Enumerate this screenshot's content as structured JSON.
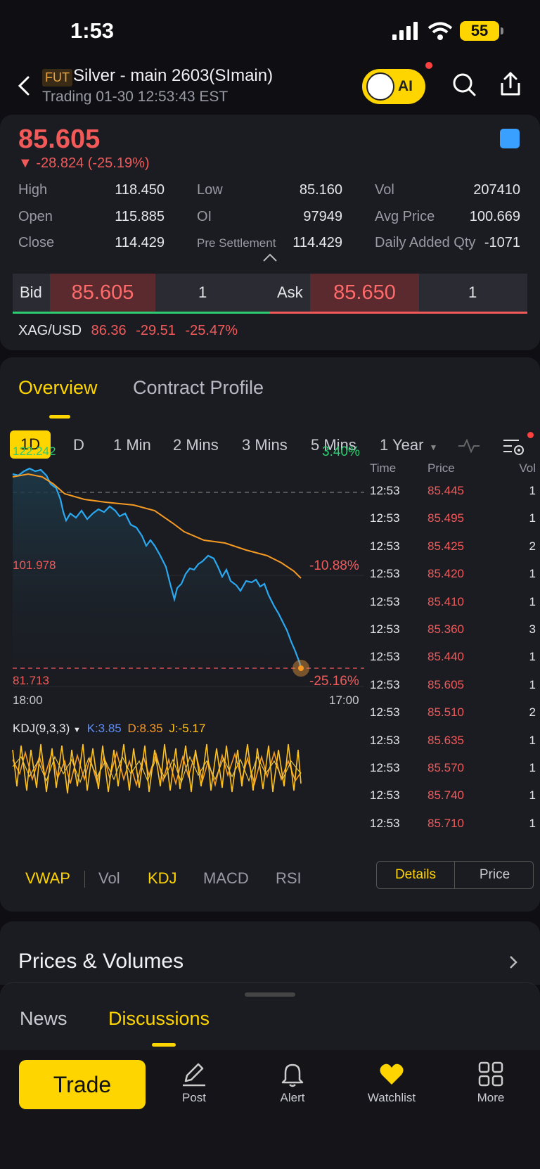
{
  "status": {
    "time": "1:53",
    "battery": "55"
  },
  "header": {
    "tag": "FUT",
    "title": "Silver - main 2603(SImain)",
    "subtitle": "Trading 01-30 12:53:43 EST",
    "ai_label": "AI"
  },
  "quote": {
    "price": "85.605",
    "change": "▼ -28.824 (-25.19%)",
    "stats": [
      {
        "label": "High",
        "value": "118.450"
      },
      {
        "label": "Low",
        "value": "85.160"
      },
      {
        "label": "Vol",
        "value": "207410"
      },
      {
        "label": "Open",
        "value": "115.885"
      },
      {
        "label": "OI",
        "value": "97949"
      },
      {
        "label": "Avg Price",
        "value": "100.669"
      },
      {
        "label": "Close",
        "value": "114.429"
      },
      {
        "label": "Pre Settlement",
        "value": "114.429"
      },
      {
        "label": "Daily Added Qty",
        "value": "-1071"
      }
    ],
    "bid_label": "Bid",
    "bid_price": "85.605",
    "bid_qty": "1",
    "ask_label": "Ask",
    "ask_price": "85.650",
    "ask_qty": "1",
    "xag_label": "XAG/USD",
    "xag_price": "86.36",
    "xag_change": "-29.51",
    "xag_pct": "-25.47%"
  },
  "tabs": {
    "overview": "Overview",
    "profile": "Contract Profile"
  },
  "periods": [
    "1D",
    "D",
    "1 Min",
    "2 Mins",
    "3 Mins",
    "5 Mins",
    "1 Year"
  ],
  "chart": {
    "y_top": "122.242",
    "y_mid": "101.978",
    "y_bot": "81.713",
    "pct_top": "3.40%",
    "pct_mid": "-10.88%",
    "pct_bot": "-25.16%",
    "x_start": "18:00",
    "x_end": "17:00",
    "kdj_label": "KDJ(9,3,3)",
    "k": "K:3.85",
    "d": "D:8.35",
    "j": "J:-5.17",
    "colors": {
      "price": "#2aa8f0",
      "vwap": "#f59a23",
      "kdj": "#ffc21a"
    }
  },
  "chart_data": {
    "type": "line",
    "ylim": [
      81.713,
      122.242
    ],
    "x": [
      "18:00",
      "17:00"
    ],
    "series": []
  },
  "ticker": {
    "headers": [
      "Time",
      "Price",
      "Vol"
    ],
    "rows": [
      {
        "time": "12:53",
        "price": "85.445",
        "vol": "1"
      },
      {
        "time": "12:53",
        "price": "85.495",
        "vol": "1"
      },
      {
        "time": "12:53",
        "price": "85.425",
        "vol": "2"
      },
      {
        "time": "12:53",
        "price": "85.420",
        "vol": "1"
      },
      {
        "time": "12:53",
        "price": "85.410",
        "vol": "1"
      },
      {
        "time": "12:53",
        "price": "85.360",
        "vol": "3"
      },
      {
        "time": "12:53",
        "price": "85.440",
        "vol": "1"
      },
      {
        "time": "12:53",
        "price": "85.605",
        "vol": "1"
      },
      {
        "time": "12:53",
        "price": "85.510",
        "vol": "2"
      },
      {
        "time": "12:53",
        "price": "85.635",
        "vol": "1"
      },
      {
        "time": "12:53",
        "price": "85.570",
        "vol": "1"
      },
      {
        "time": "12:53",
        "price": "85.740",
        "vol": "1"
      },
      {
        "time": "12:53",
        "price": "85.710",
        "vol": "1"
      }
    ]
  },
  "indicators": [
    "VWAP",
    "Vol",
    "KDJ",
    "MACD",
    "RSI"
  ],
  "segment": {
    "details": "Details",
    "price": "Price"
  },
  "prices_volumes": "Prices & Volumes",
  "bottom_tabs": {
    "news": "News",
    "discussions": "Discussions"
  },
  "nav": {
    "trade": "Trade",
    "post": "Post",
    "alert": "Alert",
    "watchlist": "Watchlist",
    "more": "More"
  }
}
